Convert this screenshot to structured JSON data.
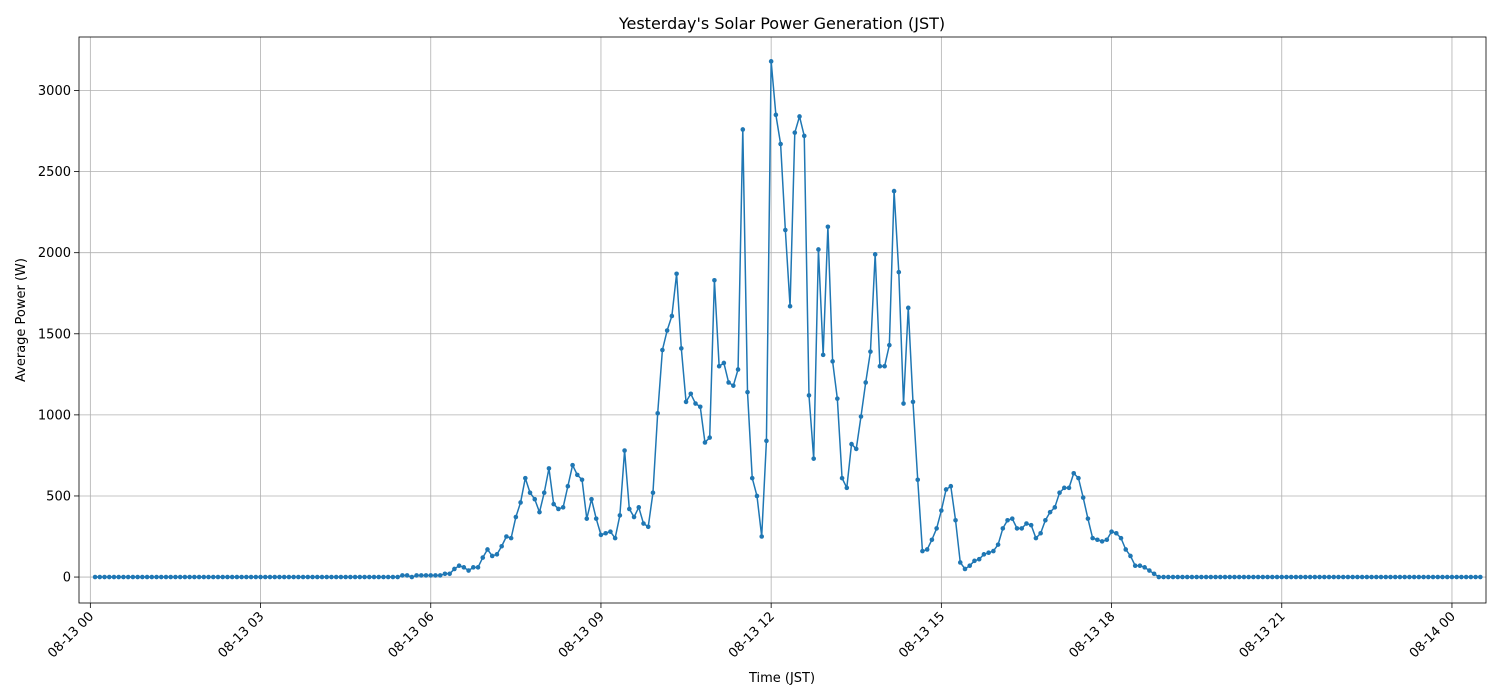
{
  "chart_data": {
    "type": "line",
    "title": "Yesterday's Solar Power Generation (JST)",
    "xlabel": "Time (JST)",
    "ylabel": "Average Power (W)",
    "x_start": "08-13 00:05",
    "x_step_minutes": 5,
    "xlim_hours": [
      -0.2,
      24.6
    ],
    "ylim": [
      -160,
      3330
    ],
    "x_ticks": [
      {
        "hour": 0,
        "label": "08-13 00"
      },
      {
        "hour": 3,
        "label": "08-13 03"
      },
      {
        "hour": 6,
        "label": "08-13 06"
      },
      {
        "hour": 9,
        "label": "08-13 09"
      },
      {
        "hour": 12,
        "label": "08-13 12"
      },
      {
        "hour": 15,
        "label": "08-13 15"
      },
      {
        "hour": 18,
        "label": "08-13 18"
      },
      {
        "hour": 21,
        "label": "08-13 21"
      },
      {
        "hour": 24,
        "label": "08-14 00"
      }
    ],
    "y_ticks": [
      {
        "value": 0,
        "label": "0"
      },
      {
        "value": 500,
        "label": "500"
      },
      {
        "value": 1000,
        "label": "1000"
      },
      {
        "value": 1500,
        "label": "1500"
      },
      {
        "value": 2000,
        "label": "2000"
      },
      {
        "value": 2500,
        "label": "2500"
      },
      {
        "value": 3000,
        "label": "3000"
      }
    ],
    "grid": true,
    "series": [
      {
        "name": "",
        "color": "#1f77b4",
        "values": [
          0,
          0,
          0,
          0,
          0,
          0,
          0,
          0,
          0,
          0,
          0,
          0,
          0,
          0,
          0,
          0,
          0,
          0,
          0,
          0,
          0,
          0,
          0,
          0,
          0,
          0,
          0,
          0,
          0,
          0,
          0,
          0,
          0,
          0,
          0,
          0,
          0,
          0,
          0,
          0,
          0,
          0,
          0,
          0,
          0,
          0,
          0,
          0,
          0,
          0,
          0,
          0,
          0,
          0,
          0,
          0,
          0,
          0,
          0,
          0,
          0,
          0,
          0,
          0,
          0,
          10,
          10,
          0,
          10,
          10,
          10,
          10,
          10,
          10,
          20,
          20,
          50,
          70,
          60,
          40,
          60,
          60,
          120,
          170,
          130,
          140,
          190,
          250,
          240,
          370,
          460,
          610,
          520,
          480,
          400,
          520,
          670,
          450,
          420,
          430,
          560,
          690,
          630,
          600,
          360,
          480,
          360,
          260,
          270,
          280,
          240,
          380,
          780,
          420,
          370,
          430,
          330,
          310,
          520,
          1010,
          1400,
          1520,
          1610,
          1870,
          1410,
          1080,
          1130,
          1070,
          1050,
          830,
          860,
          1830,
          1300,
          1320,
          1200,
          1180,
          1280,
          2760,
          1140,
          610,
          500,
          250,
          840,
          3180,
          2850,
          2670,
          2140,
          1670,
          2740,
          2840,
          2720,
          1120,
          730,
          2020,
          1370,
          2160,
          1330,
          1100,
          610,
          550,
          820,
          790,
          990,
          1200,
          1390,
          1990,
          1300,
          1300,
          1430,
          2380,
          1880,
          1070,
          1660,
          1080,
          600,
          160,
          170,
          230,
          300,
          410,
          540,
          560,
          350,
          90,
          50,
          70,
          100,
          110,
          140,
          150,
          160,
          200,
          300,
          350,
          360,
          300,
          300,
          330,
          320,
          240,
          270,
          350,
          400,
          430,
          520,
          550,
          550,
          640,
          610,
          490,
          360,
          240,
          230,
          220,
          230,
          280,
          270,
          240,
          170,
          130,
          70,
          70,
          60,
          40,
          20,
          0,
          0,
          0,
          0,
          0,
          0,
          0,
          0,
          0,
          0,
          0,
          0,
          0,
          0,
          0,
          0,
          0,
          0,
          0,
          0,
          0,
          0,
          0,
          0,
          0,
          0,
          0,
          0,
          0,
          0,
          0,
          0,
          0,
          0,
          0,
          0,
          0,
          0,
          0,
          0,
          0,
          0,
          0,
          0,
          0,
          0,
          0,
          0,
          0,
          0,
          0,
          0,
          0,
          0,
          0,
          0,
          0,
          0,
          0,
          0,
          0,
          0,
          0,
          0,
          0,
          0,
          0,
          0,
          0
        ]
      }
    ]
  }
}
